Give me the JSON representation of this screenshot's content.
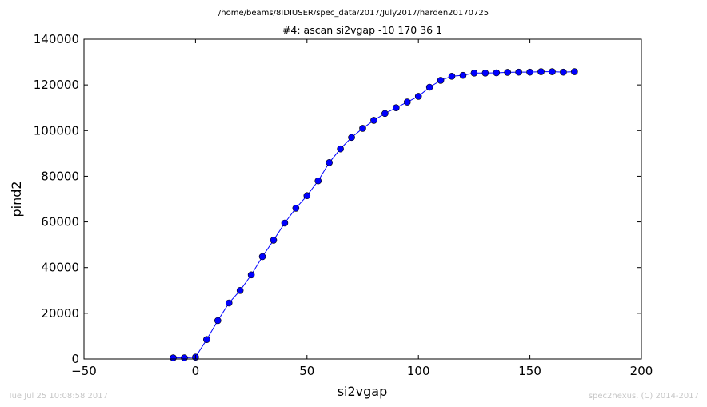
{
  "header": {
    "path": "/home/beams/8IDIUSER/spec_data/2017/July2017/harden20170725"
  },
  "footer": {
    "timestamp": "Tue Jul 25 10:08:58 2017",
    "credit": "spec2nexus, (C) 2014-2017"
  },
  "colors": {
    "series": "#0000ff",
    "axes": "#000000",
    "footer_text": "#c6c6c6"
  },
  "chart_data": {
    "type": "line",
    "title": "#4: ascan  si2vgap -10 170  36 1",
    "xlabel": "si2vgap",
    "ylabel": "pind2",
    "xlim": [
      -50,
      200
    ],
    "ylim": [
      0,
      140000
    ],
    "xticks": [
      "−50",
      "0",
      "50",
      "100",
      "150",
      "200"
    ],
    "yticks": [
      "0",
      "20000",
      "40000",
      "60000",
      "80000",
      "100000",
      "120000",
      "140000"
    ],
    "grid": false,
    "marker": "circle",
    "series": [
      {
        "x": [
          -10,
          -5,
          0,
          5,
          10,
          15,
          20,
          25,
          30,
          35,
          40,
          45,
          50,
          55,
          60,
          65,
          70,
          75,
          80,
          85,
          90,
          95,
          100,
          105,
          110,
          115,
          120,
          125,
          130,
          135,
          140,
          145,
          150,
          155,
          160,
          165,
          170
        ],
        "values": [
          500,
          500,
          800,
          8500,
          16800,
          24500,
          30000,
          36800,
          44800,
          52000,
          59500,
          66000,
          71500,
          78000,
          86000,
          92000,
          97000,
          101000,
          104500,
          107500,
          110000,
          112500,
          115000,
          119000,
          122000,
          123800,
          124200,
          125200,
          125200,
          125300,
          125500,
          125600,
          125600,
          125800,
          125800,
          125600,
          125800
        ]
      }
    ]
  }
}
